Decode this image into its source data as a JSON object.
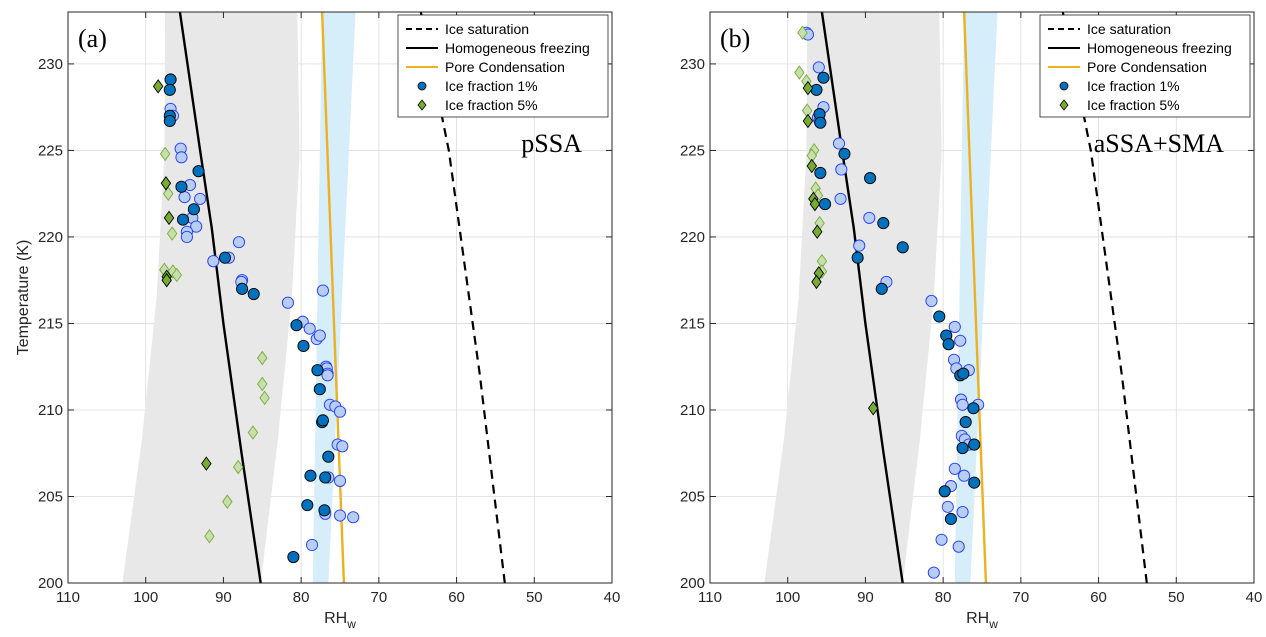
{
  "chart_data": [
    {
      "type": "scatter",
      "panel_label": "(a)",
      "annotation": "pSSA",
      "xlabel": "RH",
      "xlabel_sub": "w",
      "ylabel": "Temperature (K)",
      "xlim": [
        110,
        40
      ],
      "ylim": [
        200,
        233
      ],
      "x_reversed": true,
      "grid": true,
      "xticks": [
        110,
        100,
        90,
        80,
        70,
        60,
        50,
        40
      ],
      "yticks": [
        200,
        205,
        210,
        215,
        220,
        225,
        230
      ],
      "legend_position": "top-right",
      "legend": [
        "Ice saturation",
        "Homogeneous freezing",
        "Pore Condensation",
        "Ice fraction 1%",
        "Ice fraction 5%"
      ],
      "gray_band": {
        "temperature": [
          200,
          233
        ],
        "rh_left": [
          103,
          100.5,
          98.6,
          97.6,
          97.5
        ],
        "rh_right": [
          85.2,
          83,
          81.2,
          80.2,
          80.5
        ]
      },
      "blue_band": {
        "temperature": [
          200,
          233
        ],
        "rh_left": [
          78.5,
          77.3
        ],
        "rh_right": [
          76.5,
          73
        ]
      },
      "lines": [
        {
          "name": "Ice saturation",
          "style": "dashed",
          "color": "#000000",
          "points": [
            [
              53.8,
              200
            ],
            [
              57,
              212
            ],
            [
              61,
              225
            ],
            [
              64.6,
              233
            ]
          ]
        },
        {
          "name": "Homogeneous freezing",
          "style": "solid",
          "color": "#000000",
          "points": [
            [
              85.2,
              200
            ],
            [
              87.7,
              207.6
            ],
            [
              90,
              215
            ],
            [
              91.5,
              220.5
            ],
            [
              93,
              225
            ],
            [
              95.6,
              233
            ]
          ]
        },
        {
          "name": "Pore Condensation",
          "style": "solid",
          "color": "#EDB120",
          "points": [
            [
              74.5,
              200
            ],
            [
              77.3,
              233
            ]
          ]
        }
      ],
      "series": [
        {
          "name": "Ice fraction 1%",
          "marker": "circle",
          "style": "dark",
          "points": [
            [
              96.8,
              229.1
            ],
            [
              96.9,
              228.5
            ],
            [
              96.9,
              227.0
            ],
            [
              96.9,
              226.7
            ],
            [
              93.2,
              223.8
            ],
            [
              95.4,
              222.9
            ],
            [
              93.8,
              221.6
            ],
            [
              95.2,
              221.0
            ],
            [
              89.8,
              218.8
            ],
            [
              87.6,
              217.0
            ],
            [
              86.1,
              216.7
            ],
            [
              80.6,
              214.9
            ],
            [
              79.7,
              213.7
            ],
            [
              77.9,
              212.3
            ],
            [
              77.6,
              211.2
            ],
            [
              77.3,
              209.3
            ],
            [
              77.2,
              209.4
            ],
            [
              76.5,
              207.3
            ],
            [
              76.9,
              206.1
            ],
            [
              78.8,
              206.2
            ],
            [
              77.0,
              204.2
            ],
            [
              79.2,
              204.5
            ],
            [
              81.0,
              201.5
            ]
          ]
        },
        {
          "name": "Ice fraction 1%",
          "marker": "circle",
          "style": "light",
          "points": [
            [
              96.8,
              227.4
            ],
            [
              96.5,
              227.0
            ],
            [
              95.5,
              225.1
            ],
            [
              95.4,
              224.6
            ],
            [
              94.3,
              223.0
            ],
            [
              95.0,
              222.3
            ],
            [
              93.0,
              222.2
            ],
            [
              94.0,
              221.1
            ],
            [
              93.5,
              220.6
            ],
            [
              94.7,
              220.3
            ],
            [
              94.7,
              220.0
            ],
            [
              88.0,
              219.7
            ],
            [
              89.3,
              218.8
            ],
            [
              91.3,
              218.6
            ],
            [
              87.6,
              217.5
            ],
            [
              87.7,
              217.4
            ],
            [
              77.2,
              216.9
            ],
            [
              81.7,
              216.2
            ],
            [
              79.8,
              215.1
            ],
            [
              78.9,
              214.7
            ],
            [
              78.0,
              214.1
            ],
            [
              77.6,
              214.3
            ],
            [
              76.8,
              212.5
            ],
            [
              76.7,
              212.4
            ],
            [
              76.6,
              212.1
            ],
            [
              76.6,
              212.0
            ],
            [
              76.3,
              210.3
            ],
            [
              75.6,
              210.2
            ],
            [
              75.0,
              209.9
            ],
            [
              75.3,
              208.0
            ],
            [
              74.7,
              207.9
            ],
            [
              75.0,
              205.9
            ],
            [
              76.5,
              206.1
            ],
            [
              76.9,
              204.0
            ],
            [
              75.0,
              203.9
            ],
            [
              73.3,
              203.8
            ],
            [
              78.6,
              202.2
            ]
          ]
        },
        {
          "name": "Ice fraction 5%",
          "marker": "diamond",
          "style": "dark",
          "points": [
            [
              98.4,
              228.7
            ],
            [
              97.4,
              223.1
            ],
            [
              97.0,
              221.1
            ],
            [
              97.3,
              217.7
            ],
            [
              97.3,
              217.5
            ],
            [
              92.2,
              206.9
            ]
          ]
        },
        {
          "name": "Ice fraction 5%",
          "marker": "diamond",
          "style": "light",
          "points": [
            [
              97.5,
              224.8
            ],
            [
              97.1,
              222.5
            ],
            [
              96.6,
              220.2
            ],
            [
              97.6,
              218.1
            ],
            [
              96.5,
              218.0
            ],
            [
              96.0,
              217.8
            ],
            [
              85.0,
              213.0
            ],
            [
              85.0,
              211.5
            ],
            [
              84.7,
              210.7
            ],
            [
              86.2,
              208.7
            ],
            [
              88.1,
              206.7
            ],
            [
              89.5,
              204.7
            ],
            [
              91.8,
              202.7
            ]
          ]
        }
      ]
    },
    {
      "type": "scatter",
      "panel_label": "(b)",
      "annotation": "aSSA+SMA",
      "xlabel": "RH",
      "xlabel_sub": "w",
      "ylabel": "",
      "xlim": [
        110,
        40
      ],
      "ylim": [
        200,
        233
      ],
      "x_reversed": true,
      "grid": true,
      "xticks": [
        110,
        100,
        90,
        80,
        70,
        60,
        50,
        40
      ],
      "yticks": [
        200,
        205,
        210,
        215,
        220,
        225,
        230
      ],
      "legend_position": "top-right",
      "legend": [
        "Ice saturation",
        "Homogeneous freezing",
        "Pore Condensation",
        "Ice fraction 1%",
        "Ice fraction 5%"
      ],
      "gray_band": {
        "temperature": [
          200,
          233
        ],
        "rh_left": [
          103,
          100.5,
          98.6,
          97.6,
          97.5
        ],
        "rh_right": [
          85.2,
          83,
          81.2,
          80.2,
          80.5
        ]
      },
      "blue_band": {
        "temperature": [
          200,
          233
        ],
        "rh_left": [
          78.5,
          77.3
        ],
        "rh_right": [
          76.5,
          73
        ]
      },
      "lines": [
        {
          "name": "Ice saturation",
          "style": "dashed",
          "color": "#000000",
          "points": [
            [
              53.8,
              200
            ],
            [
              57,
              212
            ],
            [
              61,
              225
            ],
            [
              64.6,
              233
            ]
          ]
        },
        {
          "name": "Homogeneous freezing",
          "style": "solid",
          "color": "#000000",
          "points": [
            [
              85.2,
              200
            ],
            [
              87.7,
              207.6
            ],
            [
              90,
              215
            ],
            [
              91.5,
              220.5
            ],
            [
              93,
              225
            ],
            [
              95.6,
              233
            ]
          ]
        },
        {
          "name": "Pore Condensation",
          "style": "solid",
          "color": "#EDB120",
          "points": [
            [
              74.5,
              200
            ],
            [
              77.3,
              233
            ]
          ]
        }
      ],
      "series": [
        {
          "name": "Ice fraction 1%",
          "marker": "circle",
          "style": "dark",
          "points": [
            [
              95.4,
              229.2
            ],
            [
              96.3,
              228.5
            ],
            [
              95.9,
              227.1
            ],
            [
              95.8,
              226.6
            ],
            [
              92.7,
              224.8
            ],
            [
              89.4,
              223.4
            ],
            [
              95.8,
              223.7
            ],
            [
              95.2,
              221.9
            ],
            [
              87.7,
              220.8
            ],
            [
              85.2,
              219.4
            ],
            [
              91.0,
              218.8
            ],
            [
              87.9,
              217.0
            ],
            [
              80.5,
              215.4
            ],
            [
              79.6,
              214.3
            ],
            [
              79.3,
              213.8
            ],
            [
              77.8,
              212.0
            ],
            [
              77.4,
              212.1
            ],
            [
              76.1,
              210.1
            ],
            [
              77.1,
              209.3
            ],
            [
              76.0,
              208.0
            ],
            [
              77.5,
              207.8
            ],
            [
              76.0,
              205.8
            ],
            [
              79.8,
              205.3
            ],
            [
              79.0,
              203.7
            ]
          ]
        },
        {
          "name": "Ice fraction 1%",
          "marker": "circle",
          "style": "light",
          "points": [
            [
              97.6,
              231.8
            ],
            [
              97.4,
              231.7
            ],
            [
              96.0,
              229.8
            ],
            [
              95.4,
              227.5
            ],
            [
              96.1,
              226.9
            ],
            [
              95.9,
              226.7
            ],
            [
              93.4,
              225.4
            ],
            [
              93.1,
              223.9
            ],
            [
              93.2,
              222.2
            ],
            [
              89.5,
              221.1
            ],
            [
              90.8,
              219.5
            ],
            [
              87.3,
              217.4
            ],
            [
              81.5,
              216.3
            ],
            [
              78.5,
              214.8
            ],
            [
              77.8,
              214.0
            ],
            [
              78.6,
              212.9
            ],
            [
              78.3,
              212.4
            ],
            [
              76.7,
              212.3
            ],
            [
              77.7,
              210.6
            ],
            [
              77.5,
              210.3
            ],
            [
              75.5,
              210.3
            ],
            [
              77.6,
              208.5
            ],
            [
              77.2,
              208.3
            ],
            [
              76.7,
              208.0
            ],
            [
              78.5,
              206.6
            ],
            [
              77.3,
              206.2
            ],
            [
              79.0,
              205.6
            ],
            [
              77.5,
              204.1
            ],
            [
              79.4,
              204.4
            ],
            [
              80.2,
              202.5
            ],
            [
              78.0,
              202.1
            ],
            [
              81.2,
              200.6
            ]
          ]
        },
        {
          "name": "Ice fraction 5%",
          "marker": "diamond",
          "style": "dark",
          "points": [
            [
              97.4,
              228.6
            ],
            [
              97.4,
              226.7
            ],
            [
              96.9,
              224.1
            ],
            [
              96.7,
              222.2
            ],
            [
              96.5,
              221.9
            ],
            [
              96.2,
              220.3
            ],
            [
              96.0,
              217.9
            ],
            [
              96.3,
              217.4
            ],
            [
              89.0,
              210.1
            ]
          ]
        },
        {
          "name": "Ice fraction 5%",
          "marker": "diamond",
          "style": "light",
          "points": [
            [
              98.1,
              231.8
            ],
            [
              98.5,
              229.5
            ],
            [
              97.6,
              229.0
            ],
            [
              97.5,
              227.3
            ],
            [
              96.6,
              225.0
            ],
            [
              96.9,
              224.7
            ],
            [
              96.4,
              222.8
            ],
            [
              96.1,
              222.4
            ],
            [
              95.9,
              220.8
            ],
            [
              95.6,
              218.6
            ],
            [
              95.6,
              218.0
            ]
          ]
        }
      ]
    }
  ],
  "legend_entries": {
    "ice_saturation": "Ice saturation",
    "homogeneous_freezing": "Homogeneous freezing",
    "pore_condensation": "Pore Condensation",
    "ice_fraction_1": "Ice fraction 1%",
    "ice_fraction_5": "Ice fraction 5%"
  },
  "colors": {
    "gray_band": "#e8e8e8",
    "blue_band": "#d6edfa",
    "pore_line": "#EDB120",
    "circle_dark_fill": "#0072BD",
    "circle_light_fill": "#b8cdf2",
    "circle_light_edge": "#1f3cff",
    "diamond_dark_fill": "#77AC30",
    "diamond_light_fill": "#c8deb0",
    "diamond_light_edge": "#77AC30"
  }
}
